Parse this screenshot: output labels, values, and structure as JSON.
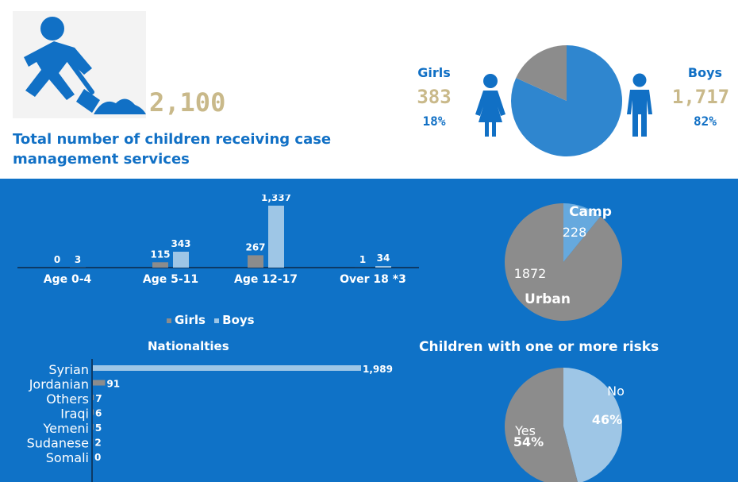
{
  "header": {
    "total_value": "2,100",
    "total_label": "Total number of children receiving case management services"
  },
  "gender": {
    "girls_label": "Girls",
    "girls_value": "383",
    "girls_pct": "18%",
    "boys_label": "Boys",
    "boys_value": "1,717",
    "boys_pct": "82%"
  },
  "nationalities_title": "Nationalties",
  "risks_title": "Children with one or more risks",
  "colors": {
    "background_blue": "#0f72c7",
    "accent_gold": "#c9b98a",
    "grey": "#8c8c8c",
    "light_blue": "#9ec6e6",
    "pie_blue": "#2f86cf",
    "mid_blue": "#66a9de"
  },
  "chart_data": [
    {
      "type": "pie",
      "id": "gender",
      "labels": [
        "Girls",
        "Boys"
      ],
      "values": [
        383,
        1717
      ],
      "percentages": [
        18,
        82
      ]
    },
    {
      "type": "bar",
      "id": "age",
      "categories": [
        "Age 0-4",
        "Age 5-11",
        "Age 12-17",
        "Over 18 *3"
      ],
      "series": [
        {
          "name": "Girls",
          "values": [
            0,
            115,
            267,
            1
          ]
        },
        {
          "name": "Boys",
          "values": [
            3,
            343,
            1337,
            34
          ]
        }
      ],
      "data_labels": [
        [
          "0",
          "115",
          "267",
          "1"
        ],
        [
          "3",
          "343",
          "1,337",
          "34"
        ]
      ],
      "legend": [
        "Girls",
        "Boys"
      ],
      "legend_position": "bottom"
    },
    {
      "type": "pie",
      "id": "location",
      "labels": [
        "Camp",
        "Urban"
      ],
      "values": [
        228,
        1872
      ]
    },
    {
      "type": "bar",
      "id": "nationalities",
      "orientation": "horizontal",
      "categories": [
        "Syrian",
        "Jordanian",
        "Others",
        "Iraqi",
        "Yemeni",
        "Sudanese",
        "Somali"
      ],
      "values": [
        1989,
        91,
        7,
        6,
        5,
        2,
        0
      ],
      "data_labels": [
        "1,989",
        "91",
        "7",
        "6",
        "5",
        "2",
        "0"
      ]
    },
    {
      "type": "pie",
      "id": "risks",
      "labels": [
        "No",
        "Yes"
      ],
      "values": [
        46,
        54
      ],
      "data_labels": [
        "46%",
        "54%"
      ]
    }
  ]
}
